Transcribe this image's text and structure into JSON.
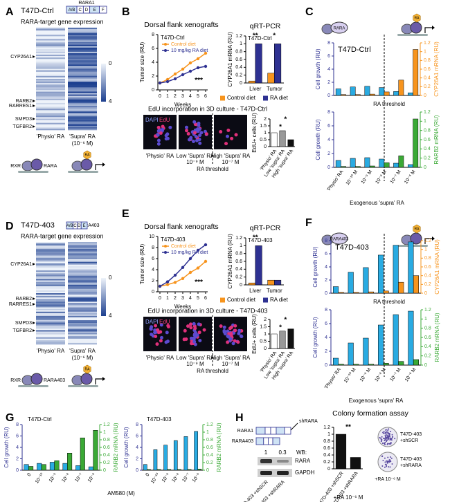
{
  "A": {
    "letter": "A",
    "cell_line": "T47D-Ctrl",
    "construct": "RARA1",
    "domains": [
      "A/B",
      "C",
      "D",
      "E",
      "F"
    ],
    "heading": "RARA-target gene expression",
    "genes": [
      "CYP26A1",
      "RARB2",
      "RARRES1",
      "SMPD3",
      "TGFBR2"
    ],
    "columns": [
      "'Physio' RA",
      "'Supra' RA"
    ],
    "column_note": "(10⁻⁶ M)",
    "colorbar_ticks": [
      0,
      4
    ],
    "rxr": "RXR",
    "rara": "RARA",
    "ra": "RA"
  },
  "B": {
    "letter": "B",
    "edu_heading": "EdU incorporation  in 3D culture -  T47D-Ctrl",
    "stains": [
      "DAPI",
      "EdU"
    ],
    "conditions": [
      "'Physio' RA",
      "Low 'Supra' RA",
      "High 'Supra' RA"
    ],
    "doses": [
      "10⁻⁹ M",
      "10⁻⁷ M"
    ],
    "threshold": "RA threshold"
  },
  "C": {
    "letter": "C",
    "threshold": "RA threshold",
    "rara": "RARA",
    "ra": "RA"
  },
  "D": {
    "letter": "D",
    "cell_line": "T47D-403",
    "construct": "RARA403",
    "domains": [
      "A/B",
      "C",
      "D",
      "E"
    ],
    "heading": "RARA-target gene expression",
    "genes": [
      "CYP26A1",
      "RARB2",
      "RARRES1",
      "SMPD3",
      "TGFBR2"
    ],
    "columns": [
      "'Physio' RA",
      "'Supra' RA"
    ],
    "column_note": "(10⁻⁶ M)",
    "colorbar_ticks": [
      0,
      4
    ],
    "rxr": "RXR",
    "rara": "RARA403",
    "ra": "RA"
  },
  "E": {
    "letter": "E",
    "edu_heading": "EdU incorporation  in 3D culture -  T47D-403",
    "stains": [
      "DAPI",
      "EdU"
    ],
    "conditions": [
      "'Physio' RA",
      "Low 'Supra' RA",
      "High 'Supra' RA"
    ],
    "doses": [
      "10⁻⁹ M",
      "10⁻⁷ M"
    ],
    "threshold": "RA threshold"
  },
  "F": {
    "letter": "F",
    "threshold": "RA threshold",
    "rara": "RARA403",
    "ra": "RA"
  },
  "G": {
    "letter": "G",
    "xlabel": "AM580 (M)"
  },
  "H": {
    "letter": "H",
    "constructs": [
      "RARA1",
      "RARA403"
    ],
    "shrna": "shRARA",
    "wb": "WB:",
    "wb_values": [
      1,
      0.3
    ],
    "proteins": [
      "RARA",
      "GAPDH"
    ],
    "lanes": [
      "T47D-403 +shSCR",
      "T47D-403 +shRARA"
    ],
    "colonies": [
      [
        "T47D-403",
        "+shSCR"
      ],
      [
        "T47D-403",
        "+shRARA"
      ]
    ],
    "colony_treatment": "+RA 10⁻⁶ M"
  },
  "chart_data": [
    {
      "type": "line",
      "title": "Dorsal flank xenografts",
      "subtitle": "T47D-Ctrl",
      "x": [
        0,
        1,
        2,
        3,
        4,
        5,
        6
      ],
      "xlim": [
        0,
        6
      ],
      "xticks": [
        0,
        1,
        2,
        3,
        4,
        5,
        6
      ],
      "ylim": [
        0,
        8
      ],
      "yticks": [
        0,
        2,
        4,
        6,
        8
      ],
      "xlabel": "Weeks",
      "ylabel": "Tumor size (RU)",
      "legend": "upper left",
      "annotations": [
        "***"
      ],
      "series": [
        {
          "name": "Control diet",
          "color": "#f7941d",
          "values": [
            1,
            1.5,
            2.3,
            3,
            3.9,
            4.5,
            5.3
          ]
        },
        {
          "name": "10 mg/kg RA diet",
          "color": "#2e3192",
          "values": [
            1,
            1.2,
            1.6,
            2.2,
            2.7,
            3.2,
            3.4
          ]
        }
      ]
    },
    {
      "type": "bar",
      "title": "qRT-PCR",
      "subtitle": "T47D-Ctrl",
      "categories": [
        "Liver",
        "Tumor"
      ],
      "ylim": [
        0,
        1.2
      ],
      "yticks": [
        0,
        0.2,
        0.4,
        0.6,
        0.8,
        1,
        1.2
      ],
      "ylabel": "CYP26A1 mRNA (RU)",
      "legend": "bottom",
      "annotations": [
        "**",
        "*"
      ],
      "series": [
        {
          "name": "Control diet",
          "color": "#f7941d",
          "values": [
            0.05,
            0.25
          ]
        },
        {
          "name": "RA diet",
          "color": "#2e3192",
          "values": [
            1.0,
            1.0
          ]
        }
      ]
    },
    {
      "type": "bar",
      "categories": [
        "'Physio' RA",
        "Low 'supra' RA",
        "High 'supra' RA"
      ],
      "ylim": [
        0,
        2
      ],
      "yticks": [
        0,
        0.5,
        1,
        1.5,
        2
      ],
      "ylabel": "EdU+ cells (RU)",
      "annotations": [
        "*",
        "*"
      ],
      "series": [
        {
          "colors": [
            "#ffffff",
            "#999999",
            "#111111"
          ],
          "values": [
            1.0,
            1.15,
            0.5
          ]
        }
      ]
    },
    {
      "type": "bar",
      "subtitle": "T47D-Ctrl",
      "ylim": [
        0,
        8
      ],
      "yticks": [
        0,
        2,
        4,
        6,
        8
      ],
      "y2lim": [
        0,
        1.2
      ],
      "y2ticks": [
        0,
        0.2,
        0.4,
        0.6,
        0.8,
        1,
        1.2
      ],
      "ylabel": "Cell growth (RU)",
      "y2label": "CYP26A1 mRNA (RU)",
      "ycolor": "#2e3192",
      "y2color": "#f7941d",
      "series": [
        {
          "color": "#29abe2",
          "values": [
            1.0,
            1.3,
            1.4,
            1.2,
            0.6,
            0.4
          ]
        },
        {
          "color": "#f7941d",
          "axis": "y2",
          "values": [
            0.02,
            0.02,
            0.03,
            0.08,
            0.35,
            1.05
          ]
        }
      ]
    },
    {
      "type": "bar",
      "categories": [
        "'Physio' RA",
        "10⁻¹⁰ M",
        "10⁻⁹ M",
        "10⁻⁸ M",
        "10⁻⁷ M",
        "10⁻⁶ M"
      ],
      "ylim": [
        0,
        8
      ],
      "yticks": [
        0,
        2,
        4,
        6,
        8
      ],
      "y2lim": [
        0,
        1.2
      ],
      "y2ticks": [
        0,
        0.2,
        0.4,
        0.6,
        0.8,
        1,
        1.2
      ],
      "xlabel": "Exogenous 'supra' RA",
      "ylabel": "Cell growth (RU)",
      "y2label": "RARB2 mRNA (RU)",
      "ycolor": "#2e3192",
      "y2color": "#3aa935",
      "series": [
        {
          "color": "#29abe2",
          "values": [
            1.0,
            1.3,
            1.4,
            1.2,
            0.6,
            0.4
          ]
        },
        {
          "color": "#3aa935",
          "axis": "y2",
          "values": [
            0.02,
            0.02,
            0.03,
            0.1,
            0.25,
            1.05
          ]
        }
      ]
    },
    {
      "type": "line",
      "title": "Dorsal flank xenografts",
      "subtitle": "T47D-403",
      "x": [
        0,
        1,
        2,
        3,
        4,
        5,
        6
      ],
      "xlim": [
        0,
        6
      ],
      "xticks": [
        0,
        1,
        2,
        3,
        4,
        5,
        6
      ],
      "ylim": [
        0,
        10
      ],
      "yticks": [
        0,
        2,
        4,
        6,
        8,
        10
      ],
      "xlabel": "Weeks",
      "ylabel": "Tumor size (RU)",
      "legend": "upper left",
      "annotations": [
        "***"
      ],
      "series": [
        {
          "name": "Control diet",
          "color": "#f7941d",
          "values": [
            1,
            1.3,
            1.7,
            2.4,
            3.5,
            4.3,
            5.5
          ]
        },
        {
          "name": "10 mg/kg RA diet",
          "color": "#2e3192",
          "values": [
            1,
            1.8,
            3,
            4.4,
            6,
            7.5,
            8.5
          ]
        }
      ]
    },
    {
      "type": "bar",
      "title": "qRT-PCR",
      "subtitle": "T47D-403",
      "categories": [
        "Liver",
        "Tumor"
      ],
      "ylim": [
        0,
        1.2
      ],
      "yticks": [
        0,
        0.2,
        0.4,
        0.6,
        0.8,
        1,
        1.2
      ],
      "ylabel": "CYP26A1 mRNA (RU)",
      "legend": "bottom",
      "annotations": [
        "**"
      ],
      "series": [
        {
          "name": "Control diet",
          "color": "#f7941d",
          "values": [
            0.05,
            0.12
          ]
        },
        {
          "name": "RA diet",
          "color": "#2e3192",
          "values": [
            1.0,
            0.12
          ]
        }
      ]
    },
    {
      "type": "bar",
      "categories": [
        "'Physio' RA",
        "Low 'supra' RA",
        "High 'supra' RA"
      ],
      "ylim": [
        0,
        2
      ],
      "yticks": [
        0,
        0.5,
        1,
        1.5,
        2
      ],
      "ylabel": "EdU+ cells (RU)",
      "annotations": [
        "*",
        "*"
      ],
      "series": [
        {
          "colors": [
            "#ffffff",
            "#999999",
            "#111111"
          ],
          "values": [
            1.0,
            1.2,
            1.35
          ]
        }
      ]
    },
    {
      "type": "bar",
      "subtitle": "T47D-403",
      "ylim": [
        0,
        8
      ],
      "yticks": [
        0,
        2,
        4,
        6,
        8
      ],
      "y2lim": [
        0,
        1.2
      ],
      "y2ticks": [
        0,
        0.2,
        0.4,
        0.6,
        0.8,
        1,
        1.2
      ],
      "ylabel": "Cell growth (RU)",
      "y2label": "CYP26A1 mRNA (RU)",
      "ycolor": "#2e3192",
      "y2color": "#f7941d",
      "series": [
        {
          "color": "#29abe2",
          "values": [
            1.0,
            3.2,
            3.9,
            5.8,
            7.3,
            7.8
          ]
        },
        {
          "color": "#f7941d",
          "axis": "y2",
          "values": [
            0.02,
            0.02,
            0.03,
            0.05,
            0.25,
            0.4
          ]
        }
      ]
    },
    {
      "type": "bar",
      "categories": [
        "'Physio' RA",
        "10⁻¹⁰ M",
        "10⁻⁹ M",
        "10⁻⁸ M",
        "10⁻⁷ M",
        "10⁻⁶ M"
      ],
      "ylim": [
        0,
        8
      ],
      "yticks": [
        0,
        2,
        4,
        6,
        8
      ],
      "y2lim": [
        0,
        1.2
      ],
      "y2ticks": [
        0,
        0.2,
        0.4,
        0.6,
        0.8,
        1,
        1.2
      ],
      "xlabel": "Exogenous 'supra' RA",
      "ylabel": "Cell growth (RU)",
      "y2label": "RARB2 mRNA (RU)",
      "ycolor": "#2e3192",
      "y2color": "#3aa935",
      "series": [
        {
          "color": "#29abe2",
          "values": [
            1.0,
            3.2,
            3.9,
            5.8,
            7.3,
            7.8
          ]
        },
        {
          "color": "#3aa935",
          "axis": "y2",
          "values": [
            0.02,
            0.02,
            0.02,
            0.04,
            0.08,
            0.12
          ]
        }
      ]
    },
    {
      "type": "bar",
      "subtitle": "T47D-Ctrl",
      "categories": [
        "0",
        "10⁻¹⁰",
        "10⁻⁹",
        "10⁻⁸",
        "10⁻⁷",
        "10⁻⁶"
      ],
      "ylim": [
        0,
        8
      ],
      "yticks": [
        0,
        2,
        4,
        6,
        8
      ],
      "y2lim": [
        0,
        1.2
      ],
      "y2ticks": [
        0,
        0.2,
        0.4,
        0.6,
        0.8,
        1,
        1.2
      ],
      "ylabel": "Cell growth (RU)",
      "y2label": "RARB2 mRNA (RU)",
      "ycolor": "#2e3192",
      "y2color": "#3aa935",
      "series": [
        {
          "color": "#29abe2",
          "values": [
            1.0,
            1.2,
            1.4,
            1.2,
            0.8,
            0.6
          ]
        },
        {
          "color": "#3aa935",
          "axis": "y2",
          "values": [
            0.1,
            0.15,
            0.25,
            0.45,
            0.85,
            1.05
          ]
        }
      ]
    },
    {
      "type": "bar",
      "subtitle": "T47D-403",
      "categories": [
        "0",
        "10⁻¹⁰",
        "10⁻⁹",
        "10⁻⁸",
        "10⁻⁷",
        "10⁻⁶"
      ],
      "ylim": [
        0,
        8
      ],
      "yticks": [
        0,
        2,
        4,
        6,
        8
      ],
      "y2lim": [
        0,
        1.2
      ],
      "y2ticks": [
        0,
        0.2,
        0.4,
        0.6,
        0.8,
        1,
        1.2
      ],
      "ylabel": "Cell growth (RU)",
      "y2label": "RARB2 mRNA (RU)",
      "ycolor": "#2e3192",
      "y2color": "#3aa935",
      "series": [
        {
          "color": "#29abe2",
          "values": [
            1.0,
            3.6,
            4.4,
            5.2,
            5.9,
            6.8
          ]
        },
        {
          "color": "#3aa935",
          "axis": "y2",
          "values": [
            0.02,
            0.02,
            0.02,
            0.02,
            0.02,
            0.03
          ]
        }
      ]
    },
    {
      "type": "bar",
      "title": "Colony formation assay",
      "categories": [
        "T47D-403 +shSCR",
        "T47D-403 +shRARA"
      ],
      "ylim": [
        0,
        1.2
      ],
      "yticks": [
        0,
        0.2,
        0.4,
        0.6,
        0.8,
        1,
        1.2
      ],
      "xlabel": "+RA 10⁻⁶ M",
      "annotations": [
        "**"
      ],
      "series": [
        {
          "color": "#111111",
          "values": [
            1.0,
            0.33
          ]
        }
      ]
    }
  ]
}
